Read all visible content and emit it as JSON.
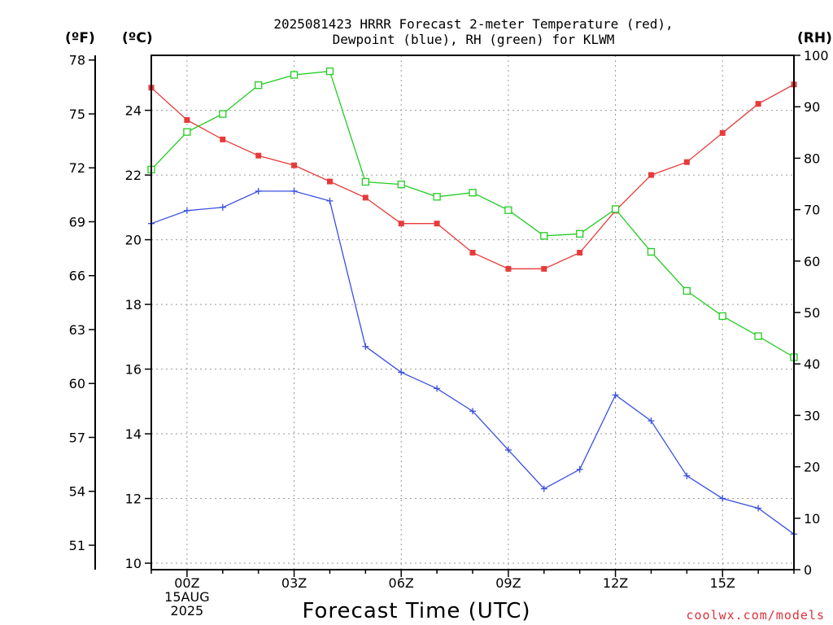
{
  "chart_data": {
    "type": "line",
    "title_line1": "2025081423 HRRR Forecast 2-meter Temperature (red),",
    "title_line2": "Dewpoint (blue), RH (green) for KLWM",
    "unit_f": "(ºF)",
    "unit_c": "(ºC)",
    "unit_rh": "(RH)",
    "xlabel": "Forecast Time (UTC)",
    "credit": "coolwx.com/models",
    "x_hours": [
      -1,
      0,
      1,
      2,
      3,
      4,
      5,
      6,
      7,
      8,
      9,
      10,
      11,
      12,
      13,
      14,
      15,
      16,
      17
    ],
    "x_ticks": [
      {
        "hour": 0,
        "lines": [
          "00Z",
          "15AUG",
          "2025"
        ]
      },
      {
        "hour": 3,
        "lines": [
          "03Z"
        ]
      },
      {
        "hour": 6,
        "lines": [
          "06Z"
        ]
      },
      {
        "hour": 9,
        "lines": [
          "09Z"
        ]
      },
      {
        "hour": 12,
        "lines": [
          "12Z"
        ]
      },
      {
        "hour": 15,
        "lines": [
          "15Z"
        ]
      }
    ],
    "xlim": [
      -1,
      17
    ],
    "celsius_range": [
      9.8,
      25.7
    ],
    "celsius_ticks": [
      10,
      12,
      14,
      16,
      18,
      20,
      22,
      24
    ],
    "fahrenheit_ticks": [
      51,
      54,
      57,
      60,
      63,
      66,
      69,
      72,
      75,
      78
    ],
    "rh_range": [
      0,
      100
    ],
    "rh_ticks": [
      0,
      10,
      20,
      30,
      40,
      50,
      60,
      70,
      80,
      90,
      100
    ],
    "series": [
      {
        "name": "Temperature",
        "color": "#e83a3a",
        "marker": "filled-square",
        "axis": "celsius",
        "values": [
          24.7,
          23.7,
          23.1,
          22.6,
          22.3,
          21.8,
          21.3,
          20.5,
          20.5,
          19.6,
          19.1,
          19.1,
          19.6,
          20.9,
          22.0,
          22.4,
          23.3,
          24.2,
          24.8
        ]
      },
      {
        "name": "Dewpoint",
        "color": "#3a50e0",
        "marker": "plus",
        "axis": "celsius",
        "values": [
          20.5,
          20.9,
          21.0,
          21.5,
          21.5,
          21.2,
          16.7,
          15.9,
          15.4,
          14.7,
          13.5,
          12.3,
          12.9,
          15.2,
          14.4,
          12.7,
          12.0,
          11.7,
          10.9
        ]
      },
      {
        "name": "RH",
        "color": "#22cc22",
        "marker": "open-square",
        "axis": "rh",
        "values": [
          77.8,
          85.1,
          88.6,
          94.2,
          96.2,
          96.9,
          75.4,
          74.9,
          72.5,
          73.3,
          69.9,
          64.9,
          65.3,
          70.1,
          61.8,
          54.2,
          49.3,
          45.4,
          41.3
        ]
      }
    ]
  }
}
